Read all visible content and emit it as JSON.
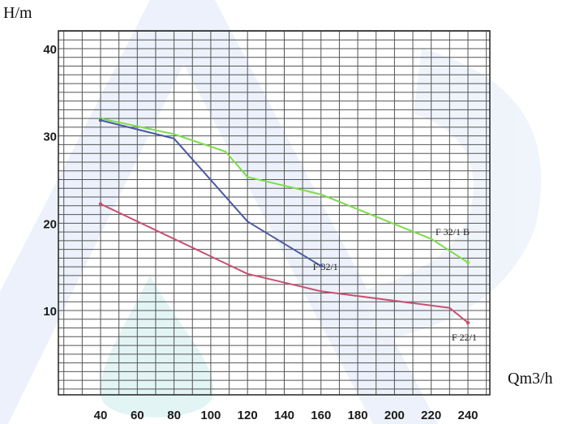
{
  "chart_data": {
    "type": "line",
    "ylabel": "H/m",
    "xlabel": "Qm3/h",
    "xlim": [
      20,
      240
    ],
    "ylim": [
      0,
      42
    ],
    "xticks": [
      40,
      60,
      80,
      100,
      120,
      140,
      160,
      180,
      200,
      220,
      240
    ],
    "yticks": [
      10,
      20,
      30,
      40
    ],
    "grid": true,
    "series": [
      {
        "name": "F 32/1 B",
        "color": "#7ddc4a",
        "points": [
          [
            40,
            32
          ],
          [
            80,
            30.2
          ],
          [
            108,
            28.2
          ],
          [
            120,
            25.3
          ],
          [
            160,
            23.3
          ],
          [
            220,
            18.2
          ],
          [
            240,
            15.5
          ]
        ]
      },
      {
        "name": "F 32/1",
        "color": "#4a5aa0",
        "points": [
          [
            40,
            31.8
          ],
          [
            80,
            29.7
          ],
          [
            120,
            20.2
          ],
          [
            160,
            15.1
          ]
        ]
      },
      {
        "name": "F 22/1",
        "color": "#c8506e",
        "points": [
          [
            40,
            22.2
          ],
          [
            120,
            14.2
          ],
          [
            160,
            12.2
          ],
          [
            230,
            10.3
          ],
          [
            240,
            8.6
          ]
        ]
      }
    ]
  }
}
